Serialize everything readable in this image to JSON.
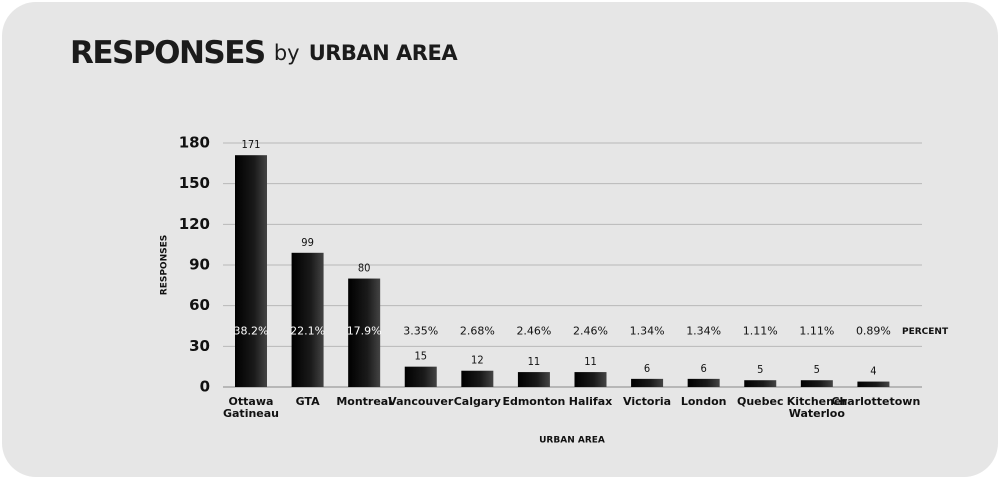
{
  "chart_data": {
    "type": "bar",
    "title": {
      "main": "RESPONSES",
      "connector": "by",
      "rest": "URBAN AREA"
    },
    "x_label": "URBAN AREA",
    "y_label": "RESPONSES",
    "categories": [
      "Ottawa Gatineau",
      "GTA",
      "Montreal",
      "Vancouver",
      "Calgary",
      "Edmonton",
      "Halifax",
      "Victoria",
      "London",
      "Quebec",
      "Kitchener Waterloo",
      "Charlottetown"
    ],
    "values": [
      171,
      99,
      80,
      15,
      12,
      11,
      11,
      6,
      6,
      5,
      5,
      4
    ],
    "color": "#111111",
    "percent": {
      "name": "PERCENT",
      "values": [
        38.2,
        22.1,
        17.9,
        3.35,
        2.68,
        2.46,
        2.46,
        1.34,
        1.34,
        1.11,
        1.11,
        0.89
      ],
      "value_labels": [
        "38.2%",
        "22.1%",
        "17.9%",
        "3.35%",
        "2.68%",
        "2.46%",
        "2.46%",
        "1.34%",
        "1.34%",
        "1.11%",
        "1.11%",
        "0.89%"
      ]
    },
    "ylim": [
      0,
      180
    ],
    "yticks": [
      0,
      30,
      60,
      90,
      120,
      150,
      180
    ],
    "grid": true
  }
}
